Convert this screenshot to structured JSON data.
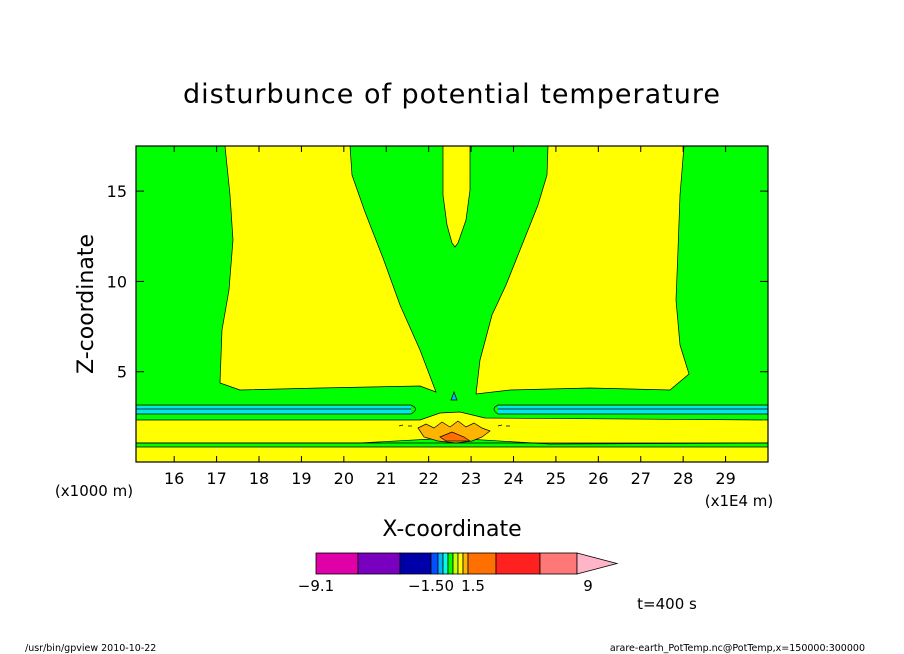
{
  "chart_data": {
    "type": "contour",
    "title": "disturbunce of potential temperature",
    "xlabel": "X-coordinate",
    "ylabel": "Z-coordinate",
    "x_unit": "(x1E4 m)",
    "y_unit": "(x1000 m)",
    "xlim": [
      15.1,
      30
    ],
    "ylim": [
      0,
      17.5
    ],
    "x_ticks": [
      16,
      17,
      18,
      19,
      20,
      21,
      22,
      23,
      24,
      25,
      26,
      27,
      28,
      29
    ],
    "y_ticks": [
      5,
      10,
      15
    ],
    "colorbar": {
      "labels": [
        {
          "value": -9.1,
          "text": "−9.1"
        },
        {
          "value": -1.5,
          "text": "−1.50"
        },
        {
          "value": 1.5,
          "text": "1.5"
        },
        {
          "value": 9,
          "text": "9"
        }
      ],
      "colors": [
        "#e000a8",
        "#7a00c0",
        "#0000a8",
        "#0050ff",
        "#00b4ff",
        "#00ffe0",
        "#00ff00",
        "#c8ff00",
        "#ffff00",
        "#ffb400",
        "#ff7000",
        "#ff2020",
        "#ff7878",
        "#ffb4c8"
      ]
    },
    "time_label": "t=400 s"
  },
  "footer": {
    "left": "/usr/bin/gpview  2010-10-22",
    "right": "arare-earth_PotTemp.nc@PotTemp,x=150000:300000"
  }
}
